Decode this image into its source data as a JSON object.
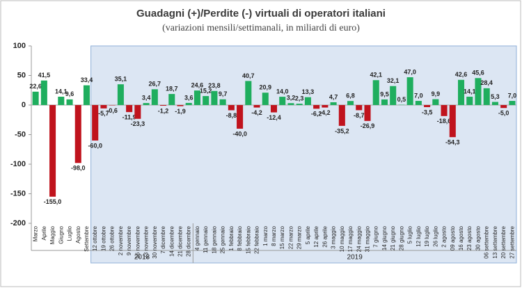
{
  "chart_data": {
    "type": "bar",
    "title": "Guadagni (+)/Perdite (-) virtuali di operatori italiani",
    "subtitle": "(variazioni mensili/settimanali, in miliardi di euro)",
    "categories": [
      "Marzo",
      "Aprile",
      "Maggio",
      "Giugno",
      "Luglio",
      "Agosto",
      "Settembre",
      "12 ottobre",
      "19 ottobre",
      "26 ottobre",
      "2 novembre",
      "9 novembre",
      "16 novembre",
      "23 novembre",
      "30 novembre",
      "7 dicembre",
      "14 dicembre",
      "21 dicembre",
      "28 dicembre",
      "4 gennaio",
      "11 gennaio",
      "18 gennaio",
      "25 gennaio",
      "1 febbraio",
      "8 febbraio",
      "15 febbraio",
      "22 febbraio",
      "1 marzo",
      "8 marzo",
      "15 marzo",
      "22 marzo",
      "29 marzo",
      "5 aprile",
      "12 aprile",
      "26 aprile",
      "3 maggio",
      "10 maggio",
      "17 maggio",
      "24 maggio",
      "31 maggio",
      "7 giugno",
      "14 giugno",
      "21 giugno",
      "28 giugno",
      "5 luglio",
      "12 luglio",
      "19 luglio",
      "26 luglio",
      "2 agosto",
      "09 agosto",
      "16 agosto",
      "23 agosto",
      "30 agosto",
      "06 settembre",
      "13 settembre",
      "20 settembre",
      "27 settembre"
    ],
    "values": [
      22.6,
      41.5,
      -155.0,
      14.1,
      9.6,
      -98.0,
      33.4,
      -60.0,
      -5.7,
      -0.6,
      35.1,
      -11.9,
      -23.3,
      3.4,
      26.7,
      -1.2,
      18.7,
      -1.9,
      3.6,
      24.6,
      15.2,
      23.8,
      9.7,
      -8.8,
      -40.0,
      40.7,
      -4.2,
      20.9,
      -12.4,
      14.0,
      3.2,
      2.3,
      13.3,
      -6.2,
      -4.2,
      4.7,
      -35.2,
      6.8,
      -8.7,
      -26.9,
      42.1,
      9.5,
      32.1,
      0.5,
      47.0,
      7.0,
      -3.5,
      9.9,
      -18.6,
      -54.3,
      42.6,
      14.1,
      45.6,
      28.4,
      5.3,
      -5.0,
      7.0
    ],
    "value_labels": [
      "22,6",
      "41,5",
      "-155,0",
      "14,1",
      "9,6",
      "-98,0",
      "33,4",
      "-60,0",
      "-5,7",
      "-0,6",
      "35,1",
      "-11,9",
      "-23,3",
      "3,4",
      "26,7",
      "-1,2",
      "18,7",
      "-1,9",
      "3,6",
      "24,6",
      "15,2",
      "23,8",
      "9,7",
      "-8,8",
      "-40,0",
      "40,7",
      "-4,2",
      "20,9",
      "-12,4",
      "14,0",
      "3,2",
      "2,3",
      "13,3",
      "-6,2",
      "-4,2",
      "4,7",
      "-35,2",
      "6,8",
      "-8,7",
      "-26,9",
      "42,1",
      "9,5",
      "32,1",
      "0,5",
      "47,0",
      "7,0",
      "-3,5",
      "9,9",
      "-18,6",
      "-54,3",
      "42,6",
      "14,1",
      "45,6",
      "28,4",
      "5,3",
      "-5,0",
      "7,0"
    ],
    "positive_color": "#1fae5e",
    "negative_color": "#c0131d",
    "years": [
      "2018",
      "2019"
    ],
    "ylim": [
      -200,
      100
    ],
    "yticks": [
      100,
      50,
      0,
      -50,
      -100,
      -150,
      -200
    ],
    "grid": false
  }
}
